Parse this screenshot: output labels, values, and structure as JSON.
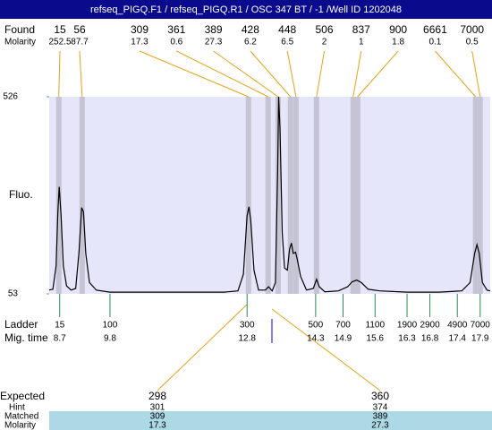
{
  "chart_data": {
    "type": "electropherogram",
    "title": "refseq_PIGQ.F1 / refseq_PIGQ.R1 / OSC 347 BT / -1 /Well ID 1202048",
    "ylabel": "Fluo.",
    "ylim": [
      53,
      526
    ],
    "yticks": [
      53,
      526
    ],
    "xlim": [
      8.47,
      18.12
    ],
    "trace": {
      "color": "#000000",
      "x": [
        8.47,
        8.55,
        8.62,
        8.66,
        8.69,
        8.73,
        8.78,
        8.85,
        8.95,
        9.05,
        9.12,
        9.18,
        9.22,
        9.27,
        9.35,
        9.5,
        9.8,
        10.5,
        11.5,
        12.3,
        12.6,
        12.72,
        12.8,
        12.84,
        12.88,
        12.95,
        13.05,
        13.2,
        13.27,
        13.35,
        13.42,
        13.47,
        13.49,
        13.52,
        13.57,
        13.62,
        13.68,
        13.73,
        13.77,
        13.81,
        13.86,
        13.9,
        13.97,
        14.1,
        14.25,
        14.32,
        14.38,
        14.5,
        14.8,
        15.0,
        15.1,
        15.2,
        15.3,
        15.45,
        15.7,
        16.3,
        17.0,
        17.5,
        17.68,
        17.78,
        17.83,
        17.88,
        17.95,
        18.05,
        18.12
      ],
      "values": [
        62,
        64,
        120,
        250,
        310,
        240,
        120,
        72,
        62,
        66,
        150,
        260,
        250,
        150,
        80,
        62,
        57,
        57,
        57,
        57,
        60,
        100,
        240,
        262,
        230,
        110,
        62,
        62,
        70,
        60,
        80,
        350,
        526,
        450,
        200,
        115,
        110,
        160,
        175,
        150,
        153,
        135,
        95,
        62,
        66,
        88,
        70,
        58,
        60,
        70,
        82,
        86,
        80,
        64,
        60,
        57,
        57,
        60,
        80,
        150,
        171,
        150,
        80,
        62,
        60
      ]
    },
    "found": {
      "label": "Found",
      "sizes": [
        15,
        56,
        309,
        361,
        389,
        428,
        448,
        506,
        837,
        900,
        6661,
        7000
      ],
      "times": [
        8.68,
        9.19,
        12.83,
        13.26,
        13.48,
        13.75,
        13.87,
        14.32,
        15.12,
        15.22,
        17.8,
        17.9
      ],
      "molarity_label": "Molarity",
      "molarity": [
        252.5,
        87.7,
        17.3,
        0.6,
        27.3,
        6.2,
        6.5,
        2,
        1,
        1.8,
        0.1,
        0.5
      ],
      "color": "#e8a317"
    },
    "ladder": {
      "label": "Ladder",
      "sizes": [
        15,
        100,
        300,
        500,
        700,
        1100,
        1900,
        2900,
        4900,
        7000
      ],
      "time_label": "Mig. time",
      "times": [
        8.7,
        9.8,
        12.8,
        14.3,
        14.9,
        15.6,
        16.3,
        16.8,
        17.4,
        17.9
      ],
      "color": "#2e8b57"
    },
    "expected": {
      "label": "Expected",
      "values": [
        298,
        360
      ],
      "hint_label": "Hint",
      "hint": [
        301,
        374
      ],
      "matched_label": "Matched",
      "matched": [
        309,
        389
      ],
      "molarity_label": "Molarity",
      "molarity": [
        17.3,
        27.3
      ]
    }
  }
}
